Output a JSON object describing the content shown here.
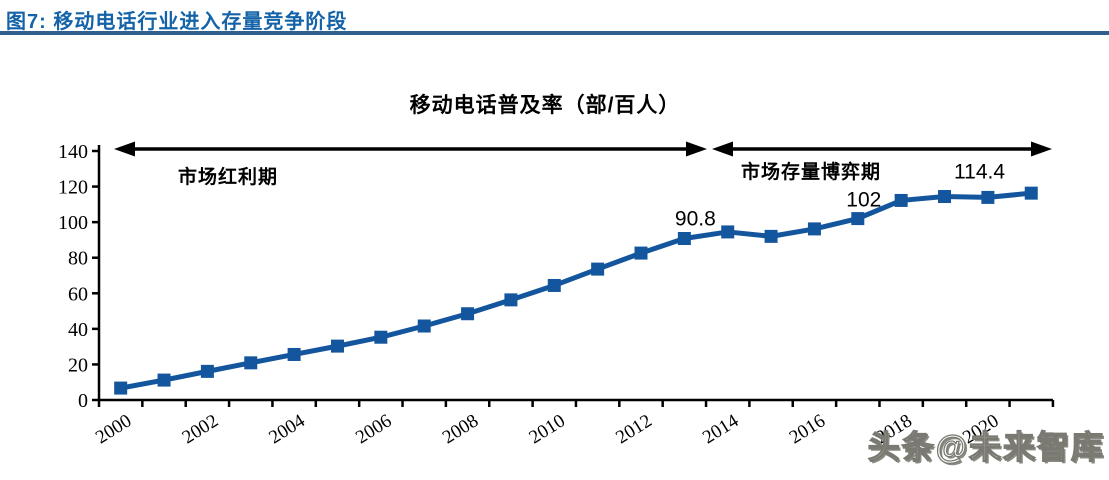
{
  "header": {
    "figure_title": "图7: 移动电话行业进入存量竞争阶段"
  },
  "watermark": {
    "text": "头条@未来智库"
  },
  "chart_data": {
    "type": "line",
    "title": "移动电话普及率（部/百人）",
    "xlabel": "",
    "ylabel": "",
    "categories": [
      2000,
      2001,
      2002,
      2003,
      2004,
      2005,
      2006,
      2007,
      2008,
      2009,
      2010,
      2011,
      2012,
      2013,
      2014,
      2015,
      2016,
      2017,
      2018,
      2019,
      2020,
      2021
    ],
    "values": [
      6.7,
      11.2,
      16.1,
      20.9,
      25.6,
      30.3,
      35.3,
      41.6,
      48.5,
      56.3,
      64.4,
      73.6,
      82.6,
      90.8,
      94.5,
      92.0,
      96.2,
      102.0,
      112.2,
      114.4,
      113.9,
      116.3
    ],
    "ylim": [
      0,
      140
    ],
    "ytick_step": 20,
    "xtick_label_every": 2,
    "grid": false,
    "legend": false,
    "series_color": "#14569D",
    "axis_color": "#000000",
    "point_labels": [
      {
        "index": 13,
        "text": "90.8"
      },
      {
        "index": 17,
        "text": "102"
      },
      {
        "index": 19,
        "text": "114.4"
      }
    ],
    "annotations": {
      "phase1": "市场红利期",
      "phase2": "市场存量博弈期"
    }
  }
}
